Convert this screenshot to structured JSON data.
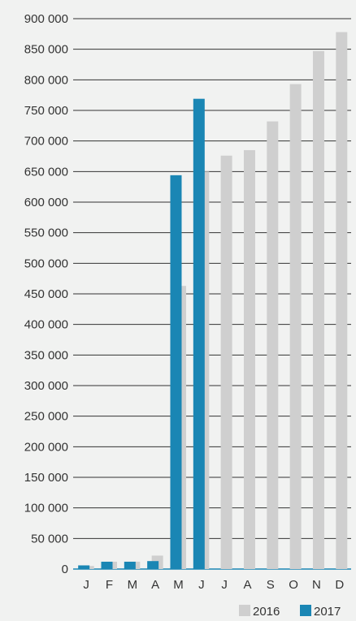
{
  "colors": {
    "background": "#f1f2f1",
    "gridline": "#333333",
    "text": "#333333",
    "series_2016": "#cfcfcf",
    "series_2017": "#1a86b4"
  },
  "chart_data": {
    "type": "bar",
    "title": "",
    "xlabel": "",
    "ylabel": "",
    "ylim": [
      0,
      900000
    ],
    "y_ticks": [
      {
        "value": 0,
        "label": "0"
      },
      {
        "value": 50000,
        "label": "50 000"
      },
      {
        "value": 100000,
        "label": "100 000"
      },
      {
        "value": 150000,
        "label": "150 000"
      },
      {
        "value": 200000,
        "label": "200 000"
      },
      {
        "value": 250000,
        "label": "250 000"
      },
      {
        "value": 300000,
        "label": "300 000"
      },
      {
        "value": 350000,
        "label": "350 000"
      },
      {
        "value": 400000,
        "label": "400 000"
      },
      {
        "value": 450000,
        "label": "450 000"
      },
      {
        "value": 500000,
        "label": "500 000"
      },
      {
        "value": 550000,
        "label": "550 000"
      },
      {
        "value": 600000,
        "label": "600 000"
      },
      {
        "value": 650000,
        "label": "650 000"
      },
      {
        "value": 700000,
        "label": "700 000"
      },
      {
        "value": 750000,
        "label": "750 000"
      },
      {
        "value": 800000,
        "label": "800 000"
      },
      {
        "value": 850000,
        "label": "850 000"
      },
      {
        "value": 900000,
        "label": "900 000"
      }
    ],
    "categories": [
      "J",
      "F",
      "M",
      "A",
      "M",
      "J",
      "J",
      "A",
      "S",
      "O",
      "N",
      "D"
    ],
    "series": [
      {
        "name": "2016",
        "color": "#cfcfcf",
        "values": [
          5000,
          12000,
          12000,
          22000,
          463000,
          650000,
          676000,
          685000,
          732000,
          793000,
          847000,
          878000
        ]
      },
      {
        "name": "2017",
        "color": "#1a86b4",
        "values": [
          6000,
          12000,
          12000,
          13000,
          644000,
          769000,
          null,
          null,
          null,
          null,
          null,
          null
        ]
      }
    ],
    "grid": true,
    "legend": {
      "placement": "bottom-right",
      "entries": [
        "2016",
        "2017"
      ]
    }
  }
}
